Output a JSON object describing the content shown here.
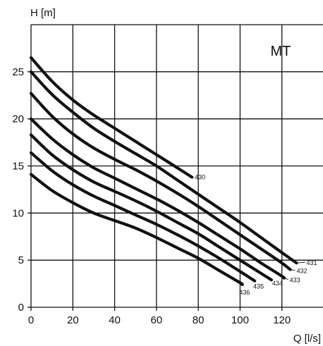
{
  "chart_data": {
    "type": "line",
    "panel_label": "MT",
    "xlabel": "Q [l/s]",
    "ylabel": "H [m]",
    "xlim": [
      0,
      140
    ],
    "ylim": [
      0,
      30
    ],
    "x_ticks": [
      0,
      20,
      40,
      60,
      80,
      100,
      120
    ],
    "y_ticks": [
      0,
      5,
      10,
      15,
      20,
      25
    ],
    "grid": true,
    "series": [
      {
        "name": "430",
        "points": [
          [
            0,
            26.5
          ],
          [
            10,
            24.0
          ],
          [
            20,
            22.0
          ],
          [
            30,
            20.4
          ],
          [
            40,
            19.0
          ],
          [
            50,
            17.6
          ],
          [
            60,
            16.2
          ],
          [
            70,
            14.8
          ],
          [
            77,
            13.8
          ]
        ]
      },
      {
        "name": "431",
        "points": [
          [
            0,
            25.0
          ],
          [
            10,
            22.6
          ],
          [
            20,
            20.7
          ],
          [
            30,
            19.0
          ],
          [
            40,
            17.6
          ],
          [
            50,
            16.3
          ],
          [
            60,
            15.0
          ],
          [
            70,
            13.5
          ],
          [
            80,
            12.0
          ],
          [
            90,
            10.5
          ],
          [
            100,
            9.0
          ],
          [
            110,
            7.4
          ],
          [
            120,
            5.8
          ],
          [
            127,
            4.7
          ]
        ]
      },
      {
        "name": "432",
        "points": [
          [
            0,
            22.7
          ],
          [
            10,
            20.3
          ],
          [
            20,
            18.4
          ],
          [
            30,
            16.9
          ],
          [
            40,
            15.7
          ],
          [
            50,
            14.6
          ],
          [
            60,
            13.4
          ],
          [
            70,
            12.1
          ],
          [
            80,
            10.7
          ],
          [
            90,
            9.2
          ],
          [
            100,
            7.7
          ],
          [
            110,
            6.2
          ],
          [
            120,
            4.7
          ],
          [
            124,
            4.0
          ]
        ]
      },
      {
        "name": "433",
        "points": [
          [
            0,
            20.0
          ],
          [
            10,
            17.9
          ],
          [
            20,
            16.2
          ],
          [
            30,
            14.8
          ],
          [
            40,
            13.7
          ],
          [
            50,
            12.6
          ],
          [
            60,
            11.5
          ],
          [
            70,
            10.3
          ],
          [
            80,
            9.0
          ],
          [
            90,
            7.6
          ],
          [
            100,
            6.2
          ],
          [
            110,
            4.7
          ],
          [
            120,
            3.3
          ],
          [
            121,
            3.1
          ]
        ]
      },
      {
        "name": "434",
        "points": [
          [
            0,
            18.3
          ],
          [
            10,
            16.2
          ],
          [
            20,
            14.6
          ],
          [
            30,
            13.3
          ],
          [
            40,
            12.3
          ],
          [
            50,
            11.3
          ],
          [
            60,
            10.2
          ],
          [
            70,
            9.0
          ],
          [
            80,
            7.8
          ],
          [
            90,
            6.4
          ],
          [
            100,
            5.0
          ],
          [
            110,
            3.6
          ],
          [
            115,
            2.9
          ]
        ]
      },
      {
        "name": "435",
        "points": [
          [
            0,
            16.4
          ],
          [
            10,
            14.5
          ],
          [
            20,
            13.0
          ],
          [
            30,
            11.8
          ],
          [
            40,
            10.8
          ],
          [
            50,
            9.8
          ],
          [
            60,
            8.8
          ],
          [
            70,
            7.7
          ],
          [
            80,
            6.5
          ],
          [
            90,
            5.2
          ],
          [
            100,
            3.8
          ],
          [
            107,
            2.8
          ]
        ]
      },
      {
        "name": "436",
        "points": [
          [
            0,
            14.1
          ],
          [
            10,
            12.4
          ],
          [
            20,
            11.1
          ],
          [
            30,
            10.0
          ],
          [
            40,
            9.2
          ],
          [
            50,
            8.4
          ],
          [
            60,
            7.4
          ],
          [
            70,
            6.3
          ],
          [
            80,
            5.2
          ],
          [
            90,
            3.9
          ],
          [
            100,
            2.6
          ],
          [
            101,
            2.4
          ]
        ]
      }
    ]
  }
}
